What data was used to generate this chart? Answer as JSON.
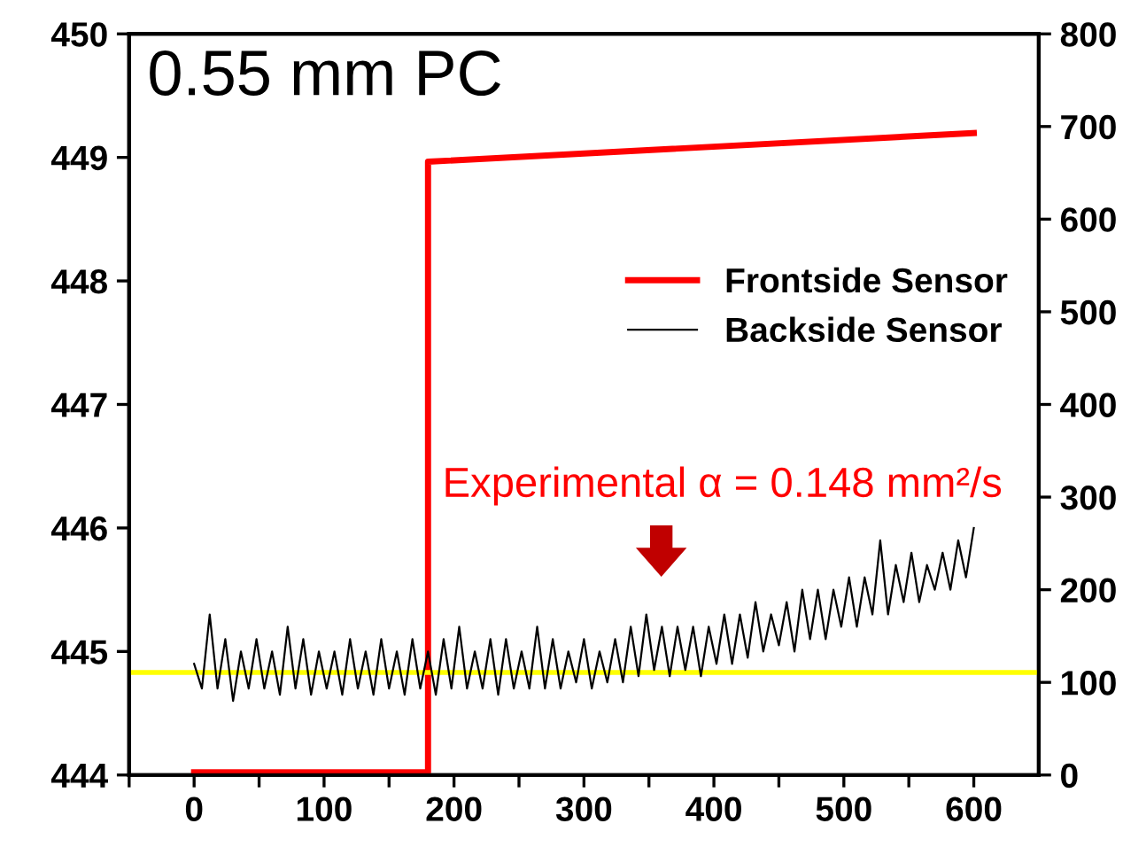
{
  "chart_data": {
    "type": "line",
    "title": "0.55 mm PC",
    "annotations": [
      "Experimental α = 0.148 mm²/s"
    ],
    "series": [
      {
        "name": "Frontside Sensor",
        "color": "#ff0000",
        "axis": "y2",
        "x": [
          0,
          180,
          180,
          600
        ],
        "values": [
          3,
          3,
          662,
          693
        ]
      },
      {
        "name": "Backside Sensor",
        "color": "#000000",
        "x": [
          0,
          6,
          12,
          18,
          24,
          30,
          36,
          42,
          48,
          54,
          60,
          66,
          72,
          78,
          84,
          90,
          96,
          102,
          108,
          114,
          120,
          126,
          132,
          138,
          144,
          150,
          156,
          162,
          168,
          174,
          180,
          186,
          192,
          198,
          204,
          210,
          216,
          222,
          228,
          234,
          240,
          246,
          252,
          258,
          264,
          270,
          276,
          282,
          288,
          294,
          300,
          306,
          312,
          318,
          324,
          330,
          336,
          342,
          348,
          354,
          360,
          366,
          372,
          378,
          384,
          390,
          396,
          402,
          408,
          414,
          420,
          426,
          432,
          438,
          444,
          450,
          456,
          462,
          468,
          474,
          480,
          486,
          492,
          498,
          504,
          510,
          516,
          522,
          528,
          534,
          540,
          546,
          552,
          558,
          564,
          570,
          576,
          582,
          588,
          594,
          600
        ],
        "values": [
          444.9,
          444.7,
          445.3,
          444.7,
          445.1,
          444.6,
          445.0,
          444.7,
          445.1,
          444.7,
          445.0,
          444.65,
          445.2,
          444.7,
          445.1,
          444.65,
          445.0,
          444.7,
          445.0,
          444.65,
          445.1,
          444.7,
          445.0,
          444.65,
          445.1,
          444.7,
          445.0,
          444.65,
          445.1,
          444.7,
          445.0,
          444.65,
          445.1,
          444.7,
          445.2,
          444.7,
          445.0,
          444.7,
          445.1,
          444.65,
          445.1,
          444.7,
          445.0,
          444.7,
          445.2,
          444.7,
          445.1,
          444.7,
          445.0,
          444.75,
          445.1,
          444.7,
          445.0,
          444.75,
          445.1,
          444.75,
          445.2,
          444.8,
          445.3,
          444.85,
          445.2,
          444.8,
          445.2,
          444.85,
          445.2,
          444.8,
          445.2,
          444.9,
          445.3,
          444.9,
          445.3,
          444.95,
          445.4,
          445.0,
          445.3,
          445.05,
          445.4,
          445.0,
          445.5,
          445.1,
          445.5,
          445.1,
          445.5,
          445.2,
          445.6,
          445.2,
          445.6,
          445.3,
          445.9,
          445.3,
          445.7,
          445.4,
          445.8,
          445.4,
          445.7,
          445.5,
          445.8,
          445.5,
          445.9,
          445.6,
          446.0
        ]
      }
    ],
    "ref_lines": [
      {
        "axis": "y",
        "value": 444.83,
        "color": "#ffff00"
      }
    ],
    "xlim": [
      -50,
      650
    ],
    "xticks": [
      {
        "value": -50,
        "label": null
      },
      0,
      {
        "value": 50,
        "label": null
      },
      100,
      {
        "value": 150,
        "label": null
      },
      200,
      {
        "value": 250,
        "label": null
      },
      300,
      {
        "value": 350,
        "label": null
      },
      400,
      {
        "value": 450,
        "label": null
      },
      500,
      {
        "value": 550,
        "label": null
      },
      600
    ],
    "ylim": [
      444,
      450
    ],
    "yticks": [
      444,
      445,
      446,
      447,
      448,
      449,
      450
    ],
    "y2lim": [
      0,
      800
    ],
    "y2ticks": [
      0,
      100,
      200,
      300,
      400,
      500,
      600,
      700,
      800
    ],
    "legend": "right",
    "grid": false,
    "marker": "none",
    "line_style": "solid"
  }
}
